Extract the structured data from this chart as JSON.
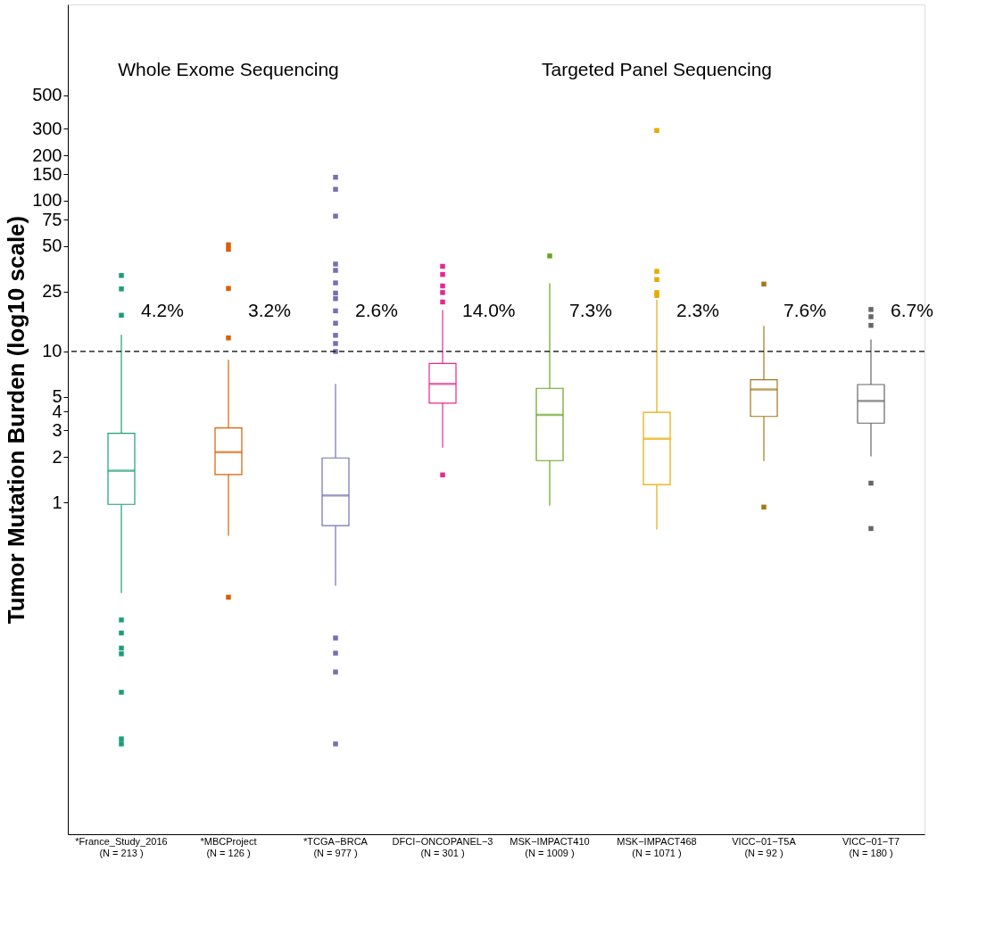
{
  "chart_data": {
    "type": "box",
    "ylabel": "Tumor Mutation Burden (log10 scale)",
    "log": true,
    "categories": [
      "*France_Study_2016\n(N = 213 )",
      "*MBCProject\n(N = 126 )",
      "*TCGA−BRCA\n(N = 977 )",
      "DFCI−ONCOPANEL−3\n(N = 301 )",
      "MSK−IMPACT410\n(N = 1009 )",
      "MSK−IMPACT468\n(N = 1071 )",
      "VICC−01−T5A\n(N = 92 )",
      "VICC−01−T7\n(N = 180 )"
    ],
    "colors": [
      "#1b9e77",
      "#d95f02",
      "#7570b3",
      "#e7298a",
      "#66a61e",
      "#e6ab02",
      "#a6761d",
      "#666666"
    ],
    "boxes": [
      {
        "low": 0.25,
        "q1": 0.97,
        "median": 1.62,
        "q3": 2.87,
        "high": 12.9,
        "outliers": [
          31.9,
          26,
          17.4,
          0.166,
          0.136,
          0.108,
          0.099,
          0.055,
          0.027,
          0.025
        ]
      },
      {
        "low": 0.6,
        "q1": 1.53,
        "median": 2.15,
        "q3": 3.11,
        "high": 8.8,
        "outliers": [
          51,
          47.6,
          26.2,
          12.3,
          0.235
        ]
      },
      {
        "low": 0.28,
        "q1": 0.7,
        "median": 1.11,
        "q3": 1.97,
        "high": 6.1,
        "outliers": [
          143,
          119,
          79,
          38,
          34.5,
          28.5,
          24.4,
          22.4,
          18.6,
          15.4,
          12.8,
          11.3,
          10,
          0.126,
          0.1,
          0.075,
          0.025
        ]
      },
      {
        "low": 2.3,
        "q1": 4.54,
        "median": 6.1,
        "q3": 8.33,
        "high": 18.8,
        "outliers": [
          36.7,
          32.4,
          27.2,
          24.6,
          21.3,
          1.52
        ]
      },
      {
        "low": 0.95,
        "q1": 1.89,
        "median": 3.8,
        "q3": 5.7,
        "high": 28.3,
        "outliers": [
          43
        ]
      },
      {
        "low": 0.66,
        "q1": 1.31,
        "median": 2.64,
        "q3": 3.95,
        "high": 22,
        "outliers": [
          292,
          34,
          30,
          24.6,
          23.5
        ]
      },
      {
        "low": 1.88,
        "q1": 3.71,
        "median": 5.6,
        "q3": 6.5,
        "high": 14.8,
        "outliers": [
          28,
          0.93
        ]
      },
      {
        "low": 2.02,
        "q1": 3.35,
        "median": 4.7,
        "q3": 6.04,
        "high": 12,
        "outliers": [
          19,
          17,
          14.9,
          1.34,
          0.67
        ]
      }
    ],
    "ylim": [
      0.0063,
      2000
    ],
    "yticks": [
      1,
      2,
      3,
      4,
      5,
      10,
      25,
      50,
      75,
      100,
      150,
      200,
      300,
      500
    ],
    "ref_lines": [
      {
        "axis": "y",
        "value": 10,
        "color": "#000000",
        "line_style": "dashed"
      }
    ],
    "annotations": [
      "Whole Exome Sequencing",
      "Targeted Panel Sequencing",
      "4.2%",
      "3.2%",
      "2.6%",
      "14.0%",
      "7.3%",
      "2.3%",
      "7.6%",
      "6.7%"
    ],
    "grid": false
  }
}
